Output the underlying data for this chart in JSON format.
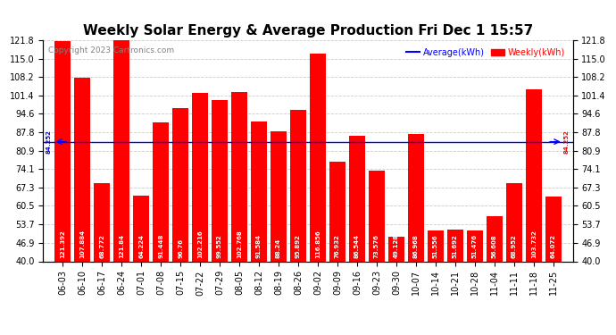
{
  "title": "Weekly Solar Energy & Average Production Fri Dec 1 15:57",
  "copyright": "Copyright 2023 Cartronics.com",
  "categories": [
    "06-03",
    "06-10",
    "06-17",
    "06-24",
    "07-01",
    "07-08",
    "07-15",
    "07-22",
    "07-29",
    "08-05",
    "08-12",
    "08-19",
    "08-26",
    "09-02",
    "09-09",
    "09-16",
    "09-23",
    "09-30",
    "10-07",
    "10-14",
    "10-21",
    "10-28",
    "11-04",
    "11-11",
    "11-18",
    "11-25"
  ],
  "values": [
    121.392,
    107.884,
    68.772,
    121.84,
    64.224,
    91.448,
    96.76,
    102.216,
    99.552,
    102.768,
    91.584,
    88.24,
    95.892,
    116.856,
    76.932,
    86.544,
    73.576,
    49.128,
    86.968,
    51.556,
    51.692,
    51.476,
    56.608,
    68.952,
    103.732,
    64.072
  ],
  "bar_color": "#ff0000",
  "average_value": 84.252,
  "average_color": "#0000ff",
  "ylim_min": 40.0,
  "ylim_max": 121.8,
  "yticks": [
    40.0,
    46.9,
    53.7,
    60.5,
    67.3,
    74.1,
    80.9,
    87.8,
    94.6,
    101.4,
    108.2,
    115.0,
    121.8
  ],
  "legend_average_label": "Average(kWh)",
  "legend_weekly_label": "Weekly(kWh)",
  "background_color": "#ffffff",
  "grid_color": "#cccccc",
  "value_fontsize": 5.0,
  "title_fontsize": 11,
  "tick_fontsize": 7,
  "copyright_fontsize": 6.5
}
